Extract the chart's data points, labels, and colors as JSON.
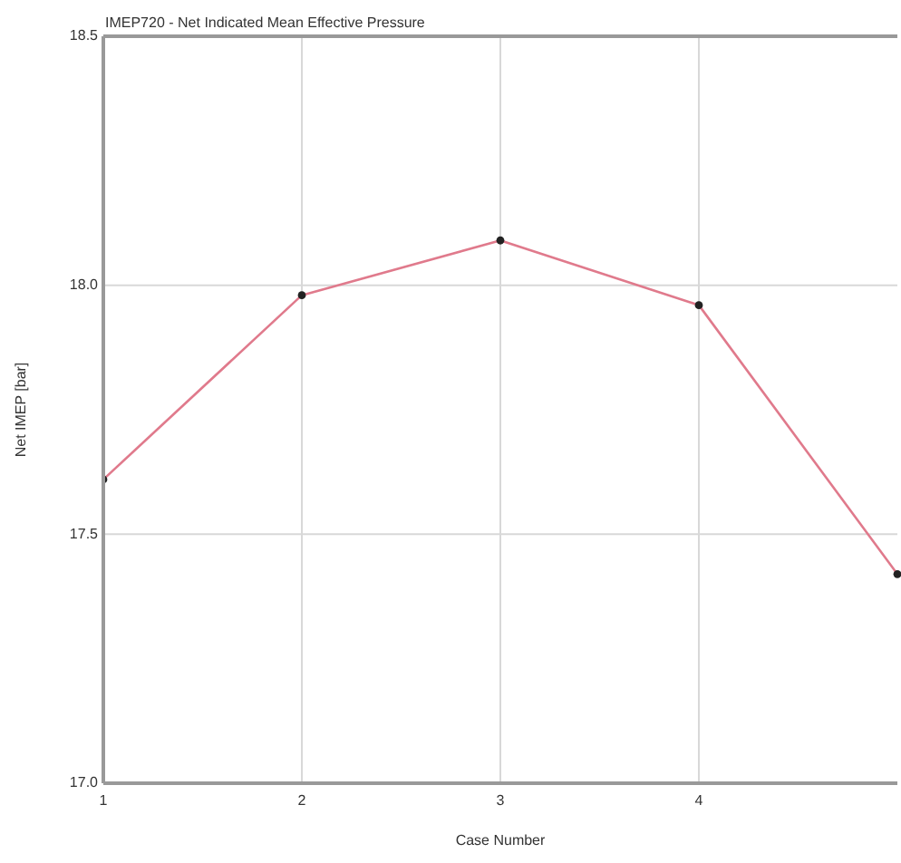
{
  "chart_data": {
    "type": "line",
    "title": "IMEP720 - Net Indicated Mean Effective Pressure",
    "xlabel": "Case Number",
    "ylabel": "Net IMEP [bar]",
    "x": [
      1,
      2,
      3,
      4,
      5
    ],
    "series": [
      {
        "color": "#e07a8c",
        "values": [
          17.61,
          17.98,
          18.09,
          17.96,
          17.42
        ]
      }
    ],
    "xlim": [
      1,
      5
    ],
    "xticks": [
      1,
      2,
      3,
      4
    ],
    "ylim": [
      17,
      18.5
    ],
    "yticks": [
      {
        "value": 17,
        "label": "17.0"
      },
      17.5,
      {
        "value": 18,
        "label": "18.0"
      },
      18.5
    ],
    "grid": true,
    "marker": "circle",
    "line_style": "solid"
  }
}
